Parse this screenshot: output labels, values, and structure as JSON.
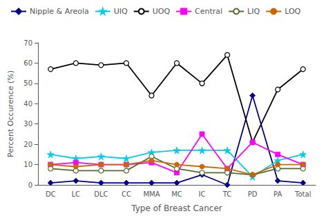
{
  "chart_data": {
    "type": "line",
    "xlabel": "Type of Breast Cancer",
    "ylabel": "Percent Occurence (%)",
    "categories": [
      "DC",
      "LC",
      "DLC",
      "CC",
      "MMA",
      "MC",
      "IC",
      "TC",
      "PD",
      "PA",
      "Total"
    ],
    "series": [
      {
        "name": "Nipple & Areola",
        "color": "#00008B",
        "marker": "diamond",
        "values": [
          1,
          2,
          1,
          1,
          1,
          1,
          5,
          0,
          44,
          2,
          1
        ]
      },
      {
        "name": "UIQ",
        "color": "#00CCEE",
        "marker": "star",
        "values": [
          15,
          13,
          14,
          13,
          16,
          17,
          17,
          17,
          4,
          12,
          15
        ]
      },
      {
        "name": "UOQ",
        "color": "#000000",
        "marker": "hollow circle",
        "values": [
          57,
          60,
          59,
          60,
          44,
          60,
          50,
          64,
          21,
          47,
          57
        ]
      },
      {
        "name": "Central",
        "color": "#FF00FF",
        "marker": "square",
        "values": [
          10,
          11,
          10,
          10,
          11,
          6,
          25,
          8,
          21,
          15,
          10
        ]
      },
      {
        "name": "LIQ",
        "color": "#556B2F",
        "marker": "hollow circle",
        "values": [
          8,
          7,
          7,
          7,
          14,
          8,
          6,
          6,
          5,
          8,
          8
        ]
      },
      {
        "name": "LOQ",
        "color": "#CC6600",
        "marker": "circle",
        "values": [
          10,
          9,
          10,
          10,
          12,
          10,
          9,
          8,
          5,
          10,
          10
        ]
      }
    ],
    "ylim": [
      0,
      70
    ],
    "yticks": [
      0,
      10,
      20,
      30,
      40,
      50,
      60,
      70
    ],
    "grid": false,
    "legend": "upper left"
  }
}
